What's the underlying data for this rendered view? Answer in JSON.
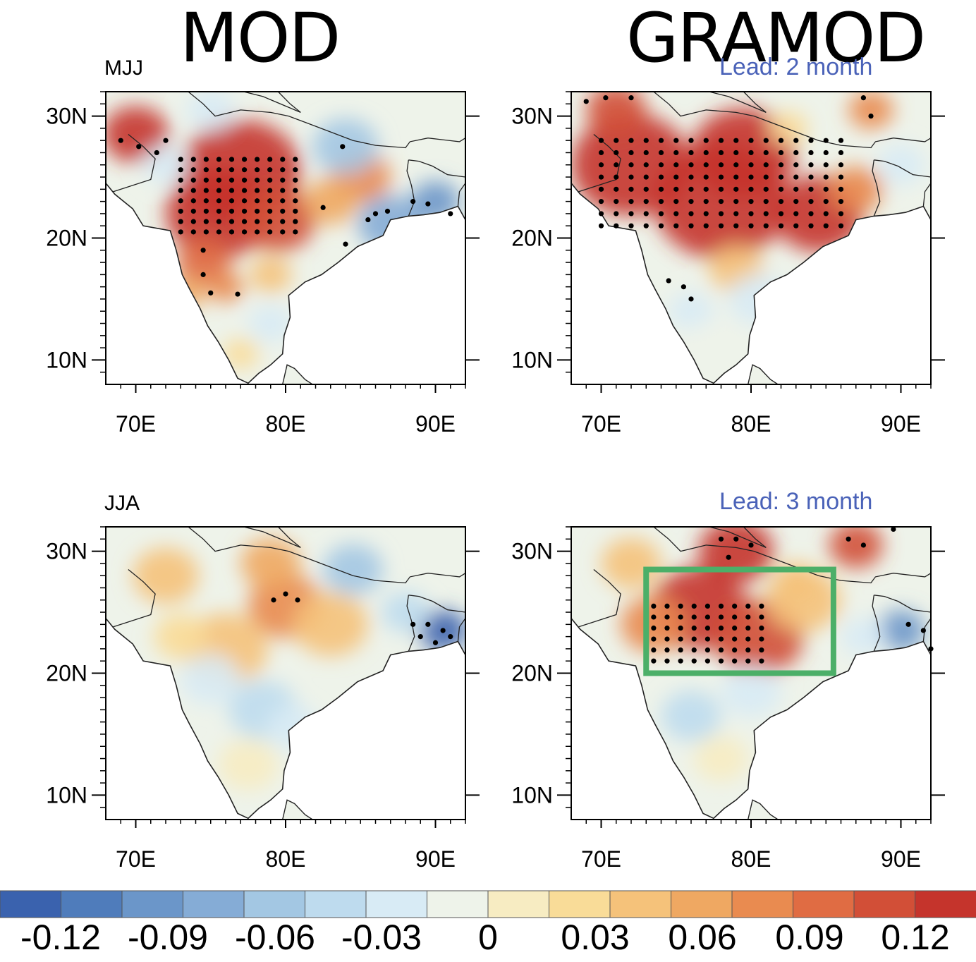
{
  "column_titles": [
    "MOD",
    "GRAMOD"
  ],
  "rows": [
    {
      "season": "MJJ",
      "lead": "Lead: 2 month"
    },
    {
      "season": "JJA",
      "lead": "Lead: 3 month"
    }
  ],
  "axes": {
    "lat_ticks": [
      "30N",
      "20N",
      "10N"
    ],
    "lon_ticks": [
      "70E",
      "80E",
      "90E"
    ],
    "lon_range": [
      68,
      92
    ],
    "lat_range": [
      8,
      32
    ]
  },
  "colorbar": {
    "labels": [
      "-0.12",
      "-0.09",
      "-0.06",
      "-0.03",
      "0",
      "0.03",
      "0.06",
      "0.09",
      "0.12"
    ],
    "colors": [
      "#3a62ae",
      "#4f7cbb",
      "#6b96c9",
      "#85acd6",
      "#a3c7e3",
      "#bedbee",
      "#d8ebf5",
      "#eef3ea",
      "#f7ecc2",
      "#f9dc98",
      "#f5c27a",
      "#efa862",
      "#e98b50",
      "#e06c43",
      "#d24f37",
      "#c5342c"
    ]
  },
  "highlight_box": {
    "panel": "GRAMOD-JJA",
    "lon_range": [
      73,
      85.5
    ],
    "lat_range": [
      20,
      28.5
    ],
    "color": "#4caf68"
  }
}
